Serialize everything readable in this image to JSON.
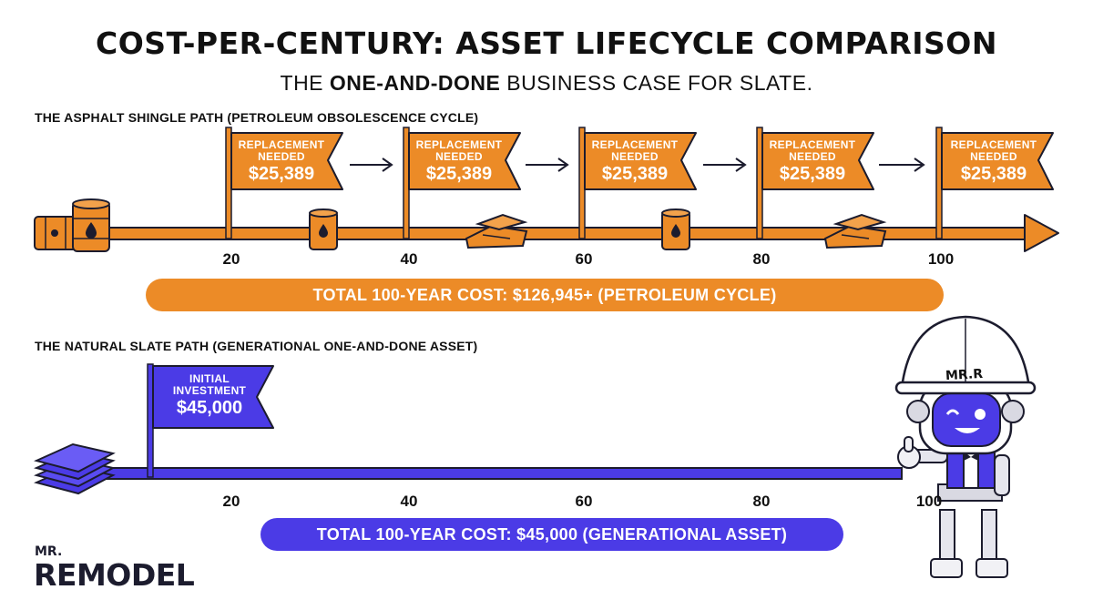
{
  "header": {
    "title": "COST-PER-CENTURY: ASSET LIFECYCLE COMPARISON",
    "subtitle_pre": "THE ",
    "subtitle_bold": "ONE-AND-DONE",
    "subtitle_post": " BUSINESS CASE FOR SLATE."
  },
  "asphalt": {
    "label": "THE ASPHALT SHINGLE PATH (PETROLEUM OBSOLESCENCE CYCLE)",
    "ticks": [
      "20",
      "40",
      "60",
      "80",
      "100"
    ],
    "flags": [
      {
        "line1": "REPLACEMENT",
        "line2": "NEEDED",
        "amount": "$25,389"
      },
      {
        "line1": "REPLACEMENT",
        "line2": "NEEDED",
        "amount": "$25,389"
      },
      {
        "line1": "REPLACEMENT",
        "line2": "NEEDED",
        "amount": "$25,389"
      },
      {
        "line1": "REPLACEMENT",
        "line2": "NEEDED",
        "amount": "$25,389"
      },
      {
        "line1": "REPLACEMENT",
        "line2": "NEEDED",
        "amount": "$25,389"
      }
    ],
    "total": "TOTAL 100-YEAR COST: $126,945+ (PETROLEUM CYCLE)"
  },
  "slate": {
    "label": "THE NATURAL SLATE PATH (GENERATIONAL ONE-AND-DONE ASSET)",
    "ticks": [
      "20",
      "40",
      "60",
      "80",
      "100"
    ],
    "flag": {
      "line1": "INITIAL",
      "line2": "INVESTMENT",
      "amount": "$45,000"
    },
    "total": "TOTAL 100-YEAR COST: $45,000 (GENERATIONAL ASSET)"
  },
  "branding": {
    "logo_top": "MR.",
    "logo_main": "REMODEL",
    "mascot_helmet": "MR.R"
  },
  "colors": {
    "asphalt": "#ec8b27",
    "slate": "#4b3be6",
    "outline": "#1c1c2e"
  },
  "icons": {
    "barrel": "oil-barrel-icon",
    "bricks": "broken-shingles-icon",
    "slate_stack": "slate-stack-icon",
    "mascot": "robot-mascot-icon"
  }
}
